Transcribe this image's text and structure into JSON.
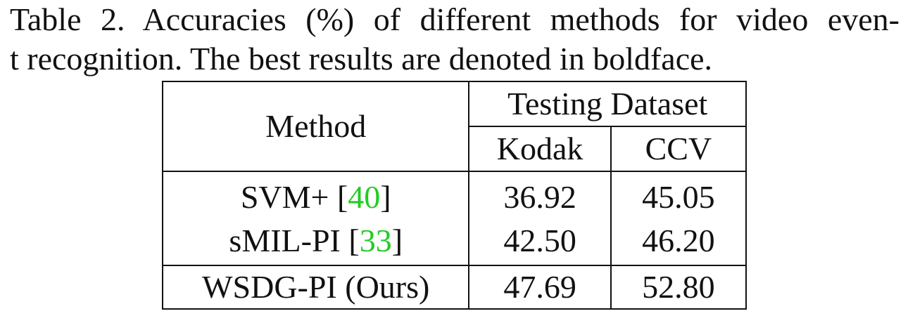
{
  "caption": {
    "line1": "Table 2. Accuracies (%) of different methods for video even-",
    "line2": "t recognition. The best results are denoted in boldface."
  },
  "table": {
    "method_header": "Method",
    "group_header": "Testing Dataset",
    "columns": [
      "Kodak",
      "CCV"
    ],
    "rows": [
      {
        "method": "SVM+ [",
        "cite": "40",
        "method_end": "]",
        "kodak": "36.92",
        "ccv": "45.05"
      },
      {
        "method": "sMIL-PI [",
        "cite": "33",
        "method_end": "]",
        "kodak": "42.50",
        "ccv": "46.20"
      },
      {
        "method": "WSDG-PI (Ours)",
        "cite": "",
        "method_end": "",
        "kodak": "47.69",
        "ccv": "52.80"
      }
    ],
    "best_row_index": 2
  },
  "colors": {
    "citation": "#22cc22",
    "text": "#111111"
  }
}
